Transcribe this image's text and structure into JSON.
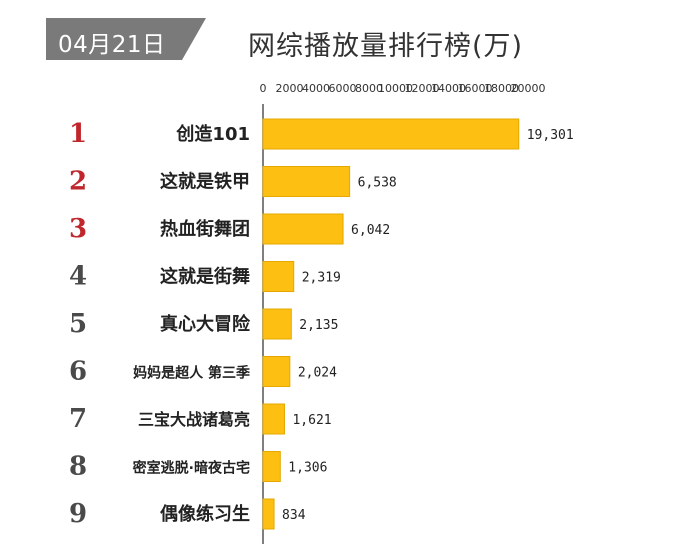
{
  "date_badge": "04月21日",
  "chart_title": "网综播放量排行榜(万)",
  "colors": {
    "bar": "#FDBF12",
    "bar_edge": "#E5A800",
    "badge_bg": "#7A7A7A",
    "rank_top": "#C0272D",
    "rank_other": "#4A4A4A"
  },
  "chart_data": {
    "type": "bar",
    "orientation": "horizontal",
    "title": "网综播放量排行榜(万)",
    "xlim": [
      0,
      20000
    ],
    "x_ticks": [
      0,
      2000,
      4000,
      6000,
      8000,
      10000,
      12000,
      14000,
      16000,
      18000,
      20000
    ],
    "tick_labels": [
      "0",
      "2000",
      "4000",
      "6000",
      "8000",
      "10000",
      "12000",
      "14000",
      "16000",
      "18000",
      "20000"
    ],
    "ranks": [
      "1",
      "2",
      "3",
      "4",
      "5",
      "6",
      "7",
      "8",
      "9"
    ],
    "categories": [
      "创造101",
      "这就是铁甲",
      "热血街舞团",
      "这就是街舞",
      "真心大冒险",
      "妈妈是超人 第三季",
      "三宝大战诸葛亮",
      "密室逃脱·暗夜古宅",
      "偶像练习生"
    ],
    "values": [
      19301,
      6538,
      6042,
      2319,
      2135,
      2024,
      1621,
      1306,
      834
    ],
    "value_labels": [
      "19,301",
      "6,538",
      "6,042",
      "2,319",
      "2,135",
      "2,024",
      "1,621",
      "1,306",
      "834"
    ],
    "grid": false
  }
}
